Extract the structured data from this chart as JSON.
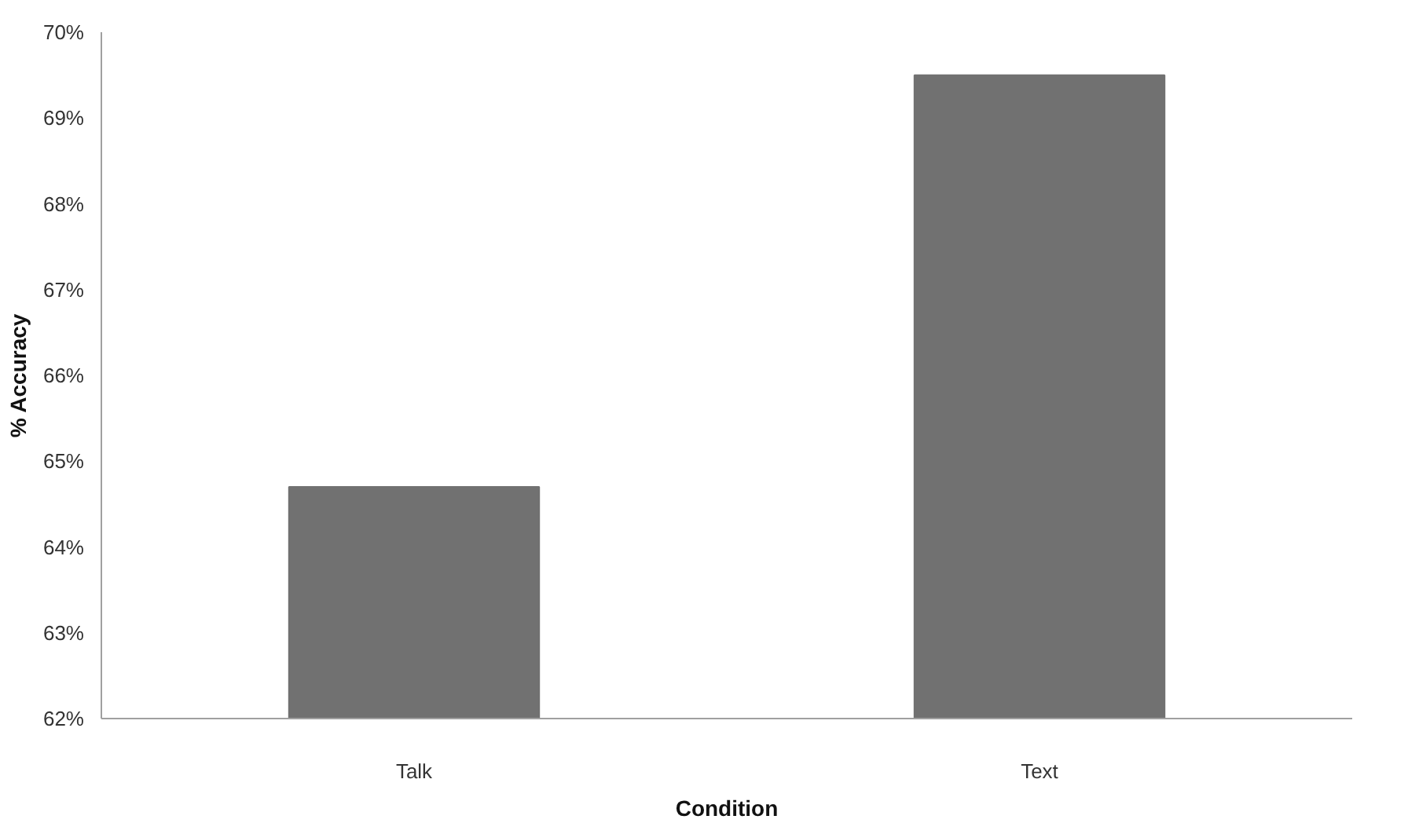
{
  "chart_data": {
    "type": "bar",
    "xlabel": "Condition",
    "ylabel": "% Accuracy",
    "categories": [
      "Talk",
      "Text"
    ],
    "values": [
      64.7,
      69.5
    ],
    "color": "#717171",
    "ylim": [
      62,
      70
    ],
    "yticks": [
      {
        "value": 62,
        "label": "62%"
      },
      {
        "value": 63,
        "label": "63%"
      },
      {
        "value": 64,
        "label": "64%"
      },
      {
        "value": 65,
        "label": "65%"
      },
      {
        "value": 66,
        "label": "66%"
      },
      {
        "value": 67,
        "label": "67%"
      },
      {
        "value": 68,
        "label": "68%"
      },
      {
        "value": 69,
        "label": "69%"
      },
      {
        "value": 70,
        "label": "70%"
      }
    ],
    "grid": false
  }
}
